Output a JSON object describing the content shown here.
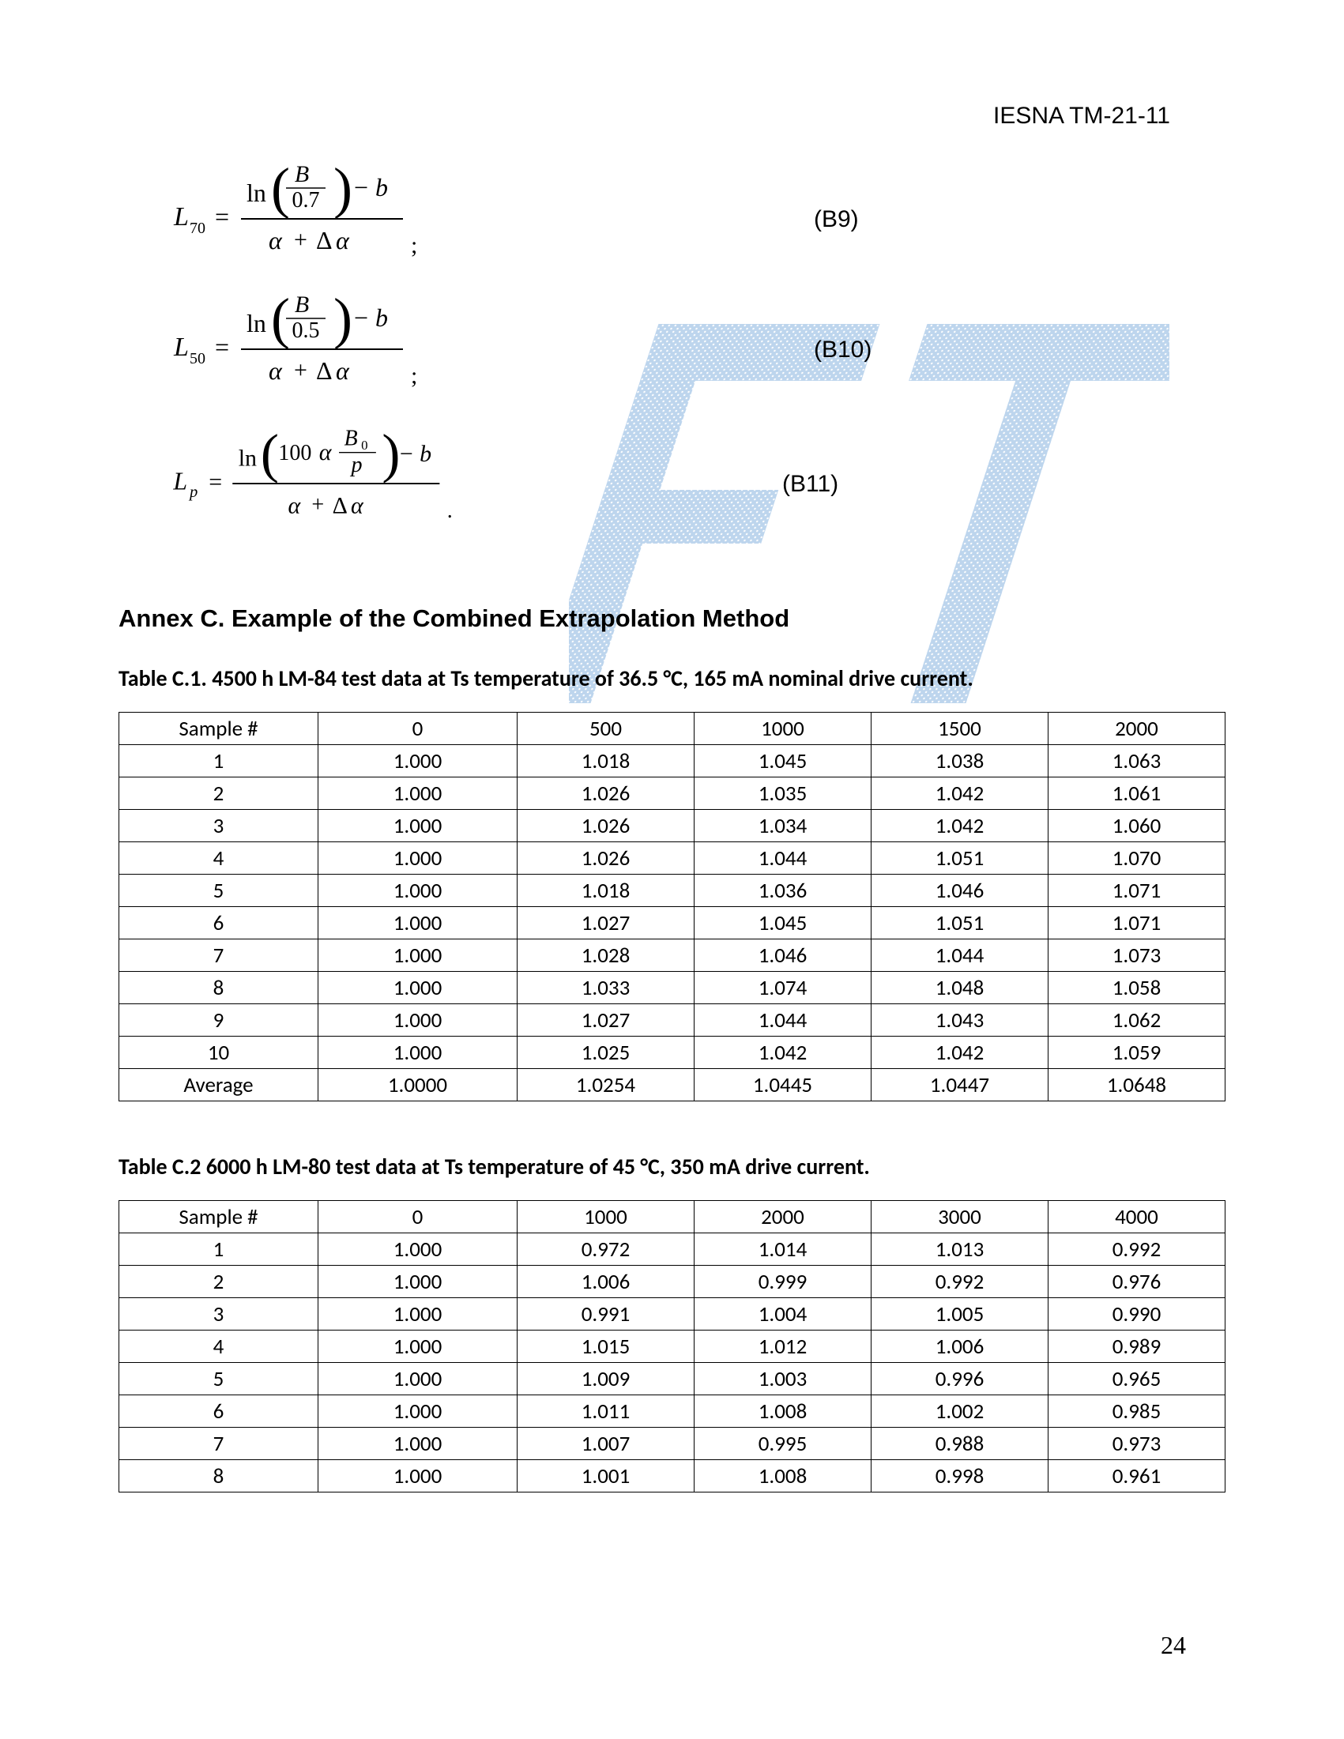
{
  "header": {
    "doc_id": "IESNA TM-21-11"
  },
  "equations": [
    {
      "lhs_sub": "70",
      "num_inner": "B",
      "num_denom": "0.7",
      "mode": "frac",
      "label": "(B9)"
    },
    {
      "lhs_sub": "50",
      "num_inner": "B",
      "num_denom": "0.5",
      "mode": "frac",
      "label": "(B10)"
    },
    {
      "lhs_sub": "p",
      "num_inner": "B",
      "sup_sub": "0",
      "mode": "product",
      "label": "(B11)"
    }
  ],
  "annex": {
    "title": "Annex C.  Example of the Combined Extrapolation Method"
  },
  "tableC1": {
    "caption": "Table C.1. 4500 h LM-84 test data at Ts temperature of 36.5 °C, 165 mA nominal drive current.",
    "columns": [
      "Sample #",
      "0",
      "500",
      "1000",
      "1500",
      "2000"
    ],
    "rows": [
      [
        "1",
        "1.000",
        "1.018",
        "1.045",
        "1.038",
        "1.063"
      ],
      [
        "2",
        "1.000",
        "1.026",
        "1.035",
        "1.042",
        "1.061"
      ],
      [
        "3",
        "1.000",
        "1.026",
        "1.034",
        "1.042",
        "1.060"
      ],
      [
        "4",
        "1.000",
        "1.026",
        "1.044",
        "1.051",
        "1.070"
      ],
      [
        "5",
        "1.000",
        "1.018",
        "1.036",
        "1.046",
        "1.071"
      ],
      [
        "6",
        "1.000",
        "1.027",
        "1.045",
        "1.051",
        "1.071"
      ],
      [
        "7",
        "1.000",
        "1.028",
        "1.046",
        "1.044",
        "1.073"
      ],
      [
        "8",
        "1.000",
        "1.033",
        "1.074",
        "1.048",
        "1.058"
      ],
      [
        "9",
        "1.000",
        "1.027",
        "1.044",
        "1.043",
        "1.062"
      ],
      [
        "10",
        "1.000",
        "1.025",
        "1.042",
        "1.042",
        "1.059"
      ],
      [
        "Average",
        "1.0000",
        "1.0254",
        "1.0445",
        "1.0447",
        "1.0648"
      ]
    ],
    "col_widths": [
      "18%",
      "18%",
      "16%",
      "16%",
      "16%",
      "16%"
    ]
  },
  "tableC2": {
    "caption": "Table C.2 6000 h LM-80 test data at Ts temperature of 45 °C, 350 mA drive current.",
    "columns": [
      "Sample #",
      "0",
      "1000",
      "2000",
      "3000",
      "4000"
    ],
    "rows": [
      [
        "1",
        "1.000",
        "0.972",
        "1.014",
        "1.013",
        "0.992"
      ],
      [
        "2",
        "1.000",
        "1.006",
        "0.999",
        "0.992",
        "0.976"
      ],
      [
        "3",
        "1.000",
        "0.991",
        "1.004",
        "1.005",
        "0.990"
      ],
      [
        "4",
        "1.000",
        "1.015",
        "1.012",
        "1.006",
        "0.989"
      ],
      [
        "5",
        "1.000",
        "1.009",
        "1.003",
        "0.996",
        "0.965"
      ],
      [
        "6",
        "1.000",
        "1.011",
        "1.008",
        "1.002",
        "0.985"
      ],
      [
        "7",
        "1.000",
        "1.007",
        "0.995",
        "0.988",
        "0.973"
      ],
      [
        "8",
        "1.000",
        "1.001",
        "1.008",
        "0.998",
        "0.961"
      ]
    ],
    "col_widths": [
      "18%",
      "18%",
      "16%",
      "16%",
      "16%",
      "16%"
    ]
  },
  "page_number": "24",
  "style": {
    "font_serif": "Times New Roman",
    "font_sans": "Arial",
    "font_table": "Calibri",
    "text_color": "#000000",
    "bg_color": "#ffffff",
    "border_color": "#000000",
    "watermark_fill": "#a8c8e8",
    "watermark_dots": "#ffffff",
    "eq_font_size": 30,
    "table_font_size": 27,
    "caption_font_size": 28,
    "title_font_size": 31
  }
}
